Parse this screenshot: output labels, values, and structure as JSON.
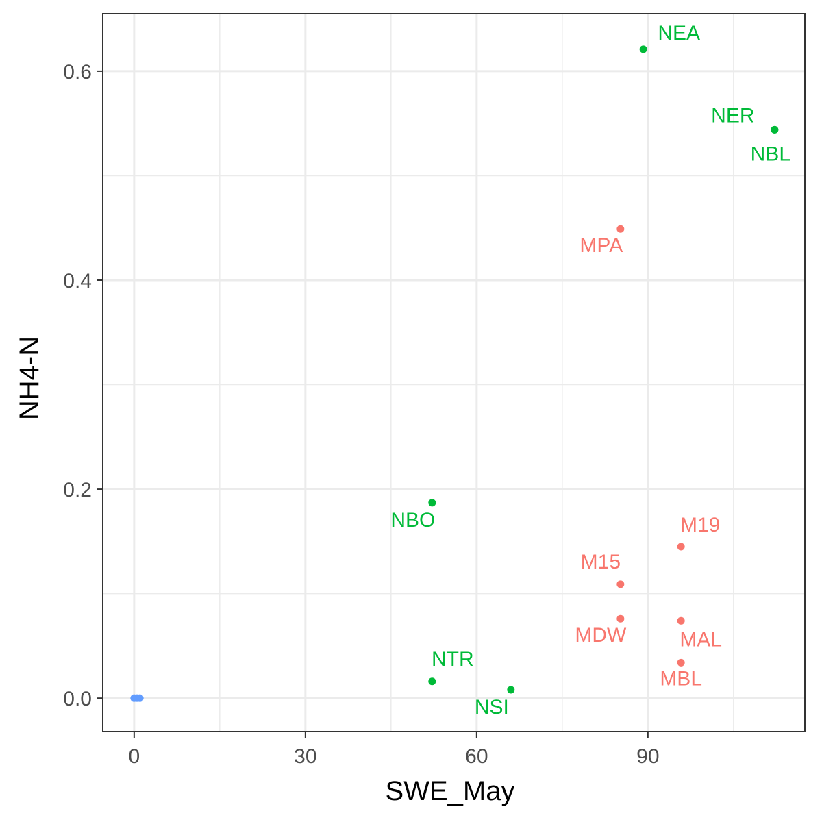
{
  "chart_data": {
    "type": "scatter",
    "title": "",
    "xlabel": "SWE_May",
    "ylabel": "NH4-N",
    "xlim": [
      -5.5,
      117.5
    ],
    "ylim": [
      -0.032,
      0.655
    ],
    "x_ticks": [
      0,
      30,
      60,
      90
    ],
    "x_tick_labels": [
      "0",
      "30",
      "60",
      "90"
    ],
    "y_ticks": [
      0.0,
      0.2,
      0.4,
      0.6
    ],
    "y_tick_labels": [
      "0.0",
      "0.2",
      "0.4",
      "0.6"
    ],
    "grid": true,
    "legend": "none",
    "series": [
      {
        "color": "#F8766D",
        "points": [
          {
            "x": 85.2,
            "y": 0.449,
            "label": "MPA"
          },
          {
            "x": 95.8,
            "y": 0.145,
            "label": "M19"
          },
          {
            "x": 85.2,
            "y": 0.109,
            "label": "M15"
          },
          {
            "x": 85.2,
            "y": 0.076,
            "label": "MDW"
          },
          {
            "x": 95.8,
            "y": 0.074,
            "label": "MAL"
          },
          {
            "x": 95.8,
            "y": 0.034,
            "label": "MBL"
          }
        ]
      },
      {
        "color": "#00BA38",
        "points": [
          {
            "x": 89.2,
            "y": 0.621,
            "label": "NEA"
          },
          {
            "x": 112.2,
            "y": 0.544,
            "label": "NER"
          },
          {
            "x": 112.2,
            "y": 0.544,
            "label": "NBL"
          },
          {
            "x": 52.2,
            "y": 0.187,
            "label": "NBO"
          },
          {
            "x": 52.2,
            "y": 0.016,
            "label": "NTR"
          },
          {
            "x": 66.0,
            "y": 0.008,
            "label": "NSI"
          }
        ]
      },
      {
        "color": "#619CFF",
        "points": [
          {
            "x": 0.0,
            "y": 0.0,
            "label": ""
          },
          {
            "x": 0.5,
            "y": 0.0,
            "label": ""
          },
          {
            "x": 1.0,
            "y": 0.0,
            "label": ""
          }
        ]
      }
    ]
  }
}
